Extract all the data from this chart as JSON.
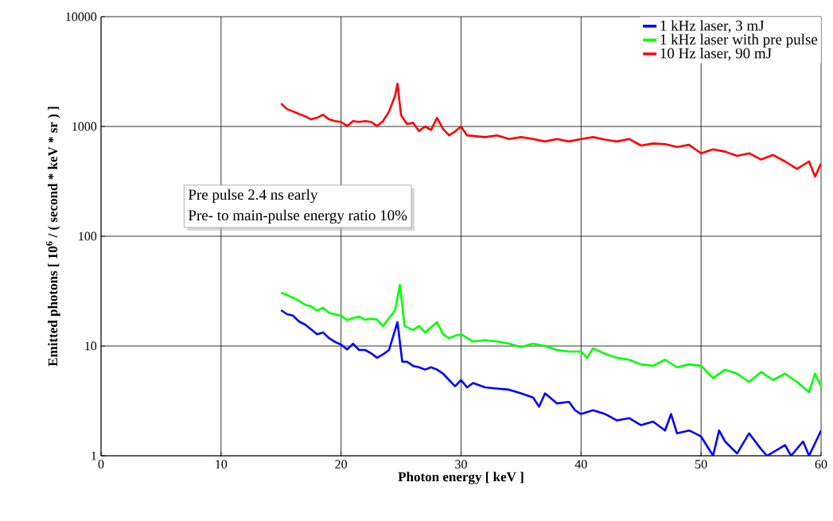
{
  "chart_data": {
    "type": "line",
    "xlabel": "Photon energy [ keV ]",
    "ylabel": "Emitted photons [ 10$^{6}$ / ( second * keV * sr ) ]",
    "xlim": [
      0,
      60
    ],
    "xticks": [
      0,
      10,
      20,
      30,
      40,
      50,
      60
    ],
    "ylim": [
      1,
      10000
    ],
    "yticks": [
      1,
      10,
      100,
      1000,
      10000
    ],
    "log": "y",
    "grid": true,
    "legend": "top right",
    "marker": "none",
    "line_style": "solid",
    "annotations": [
      "Pre pulse 2.4 ns early",
      "Pre- to main-pulse energy ratio 10%"
    ],
    "series": [
      {
        "name": "1 kHz laser, 3 mJ",
        "color": "#0000ff",
        "x": [
          15,
          15.5,
          16,
          16.5,
          17,
          17.5,
          18,
          18.5,
          19,
          19.5,
          20,
          20.5,
          21,
          21.5,
          22,
          22.5,
          23,
          23.5,
          24,
          24.5,
          24.7,
          25.1,
          25.5,
          26,
          26.5,
          27,
          27.5,
          28,
          28.5,
          29,
          29.5,
          30,
          30.5,
          31,
          32,
          33,
          34,
          35,
          36,
          36.5,
          37,
          38,
          39,
          39.5,
          40,
          41,
          42,
          43,
          44,
          45,
          46,
          47,
          47.5,
          48,
          49,
          50,
          51,
          51.5,
          52,
          53,
          54,
          55,
          55.5,
          57,
          57.5,
          58.5,
          59,
          60
        ],
        "values": [
          21.2,
          19.5,
          18.9,
          16.7,
          15.7,
          14.2,
          12.8,
          13.3,
          11.8,
          10.9,
          10.3,
          9.3,
          10.5,
          9.2,
          9.2,
          8.6,
          7.8,
          8.4,
          9.2,
          14,
          16.5,
          7.2,
          7.2,
          6.6,
          6.4,
          6.1,
          6.4,
          6.1,
          5.6,
          4.9,
          4.3,
          4.9,
          4.2,
          4.6,
          4.2,
          4.1,
          4.0,
          3.7,
          3.4,
          2.8,
          3.7,
          3.0,
          3.1,
          2.6,
          2.4,
          2.6,
          2.4,
          2.1,
          2.2,
          1.9,
          2.05,
          1.7,
          2.4,
          1.6,
          1.7,
          1.5,
          1,
          1.7,
          1.35,
          1.05,
          1.6,
          1.15,
          1,
          1.25,
          1,
          1.35,
          1,
          1.7
        ]
      },
      {
        "name": "1 kHz laser with pre pulse",
        "color": "#00ff00",
        "x": [
          15,
          16,
          16.5,
          17,
          17.5,
          18,
          18.5,
          19,
          19.5,
          20,
          20.5,
          21,
          21.5,
          22,
          22.5,
          23,
          23.5,
          24,
          24.5,
          24.9,
          25.3,
          26,
          26.5,
          27,
          28,
          28.5,
          29,
          29.5,
          30,
          31,
          32,
          33,
          34,
          35,
          36,
          37,
          38,
          39,
          40,
          40.5,
          41,
          42,
          43,
          44,
          45,
          46,
          47,
          48,
          49,
          50,
          51,
          52,
          53,
          54,
          55,
          56,
          57,
          58,
          59,
          59.5,
          60
        ],
        "values": [
          30.6,
          27.6,
          25.8,
          23.8,
          23,
          21,
          22.3,
          20.1,
          19.4,
          18.9,
          17.2,
          18,
          18.5,
          17.4,
          17.7,
          17.4,
          15.2,
          18,
          21,
          36,
          15.2,
          14,
          15.2,
          13.3,
          16.5,
          12.8,
          11.8,
          12.4,
          12.8,
          11,
          11.3,
          11,
          10.5,
          9.8,
          10.5,
          10,
          9.2,
          8.9,
          8.9,
          7.8,
          9.5,
          8.5,
          7.8,
          7.5,
          6.8,
          6.6,
          7.5,
          6.4,
          6.8,
          6.6,
          5.1,
          6.1,
          5.6,
          4.7,
          5.8,
          4.9,
          5.6,
          4.7,
          3.8,
          5.6,
          4.3
        ]
      },
      {
        "name": "10 Hz laser, 90 mJ",
        "color": "#ff0000",
        "x": [
          15,
          15.5,
          16,
          16.5,
          17,
          17.5,
          18,
          18.5,
          19,
          19.5,
          20,
          20.5,
          21,
          21.5,
          22,
          22.5,
          23,
          23.5,
          24,
          24.5,
          24.7,
          25,
          25.5,
          26,
          26.5,
          27,
          27.5,
          28,
          28.5,
          29,
          29.5,
          30,
          30.5,
          31,
          32,
          33,
          34,
          35,
          36,
          37,
          38,
          39,
          40,
          41,
          42,
          43,
          44,
          45,
          46,
          47,
          48,
          49,
          50,
          51,
          52,
          53,
          54,
          55,
          56,
          57,
          58,
          59,
          59.5,
          60
        ],
        "values": [
          1620,
          1440,
          1370,
          1300,
          1240,
          1160,
          1200,
          1280,
          1160,
          1120,
          1100,
          1010,
          1120,
          1100,
          1120,
          1100,
          1010,
          1120,
          1370,
          1900,
          2450,
          1270,
          1050,
          1080,
          910,
          1000,
          930,
          1200,
          950,
          830,
          900,
          1000,
          830,
          820,
          800,
          830,
          770,
          800,
          770,
          730,
          770,
          730,
          770,
          800,
          760,
          730,
          770,
          670,
          700,
          690,
          650,
          680,
          570,
          620,
          590,
          540,
          570,
          500,
          550,
          480,
          410,
          480,
          350,
          460
        ]
      }
    ]
  }
}
